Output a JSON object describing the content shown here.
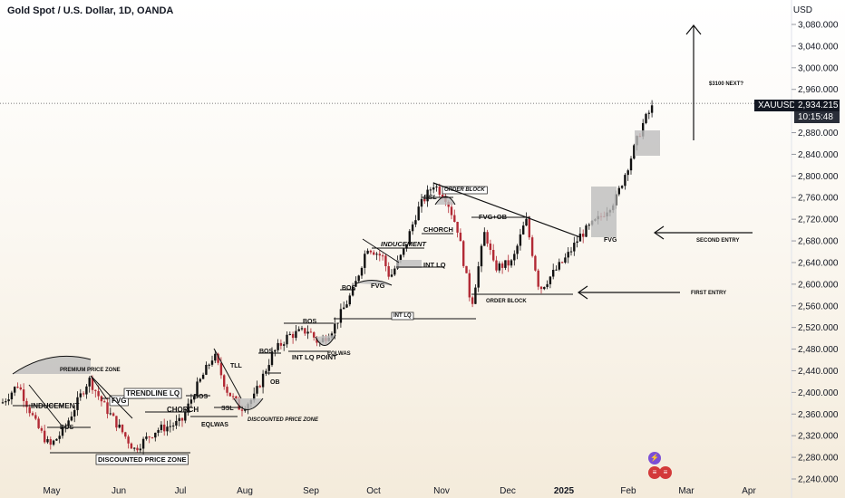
{
  "header": {
    "title": "Gold Spot / U.S. Dollar, 1D, OANDA",
    "currency": "USD"
  },
  "price_tag": {
    "symbol": "XAUUSD",
    "price": "2,934.215",
    "countdown": "10:15:48"
  },
  "colors": {
    "up": "#111111",
    "down": "#b22a35",
    "axis_text": "#131722",
    "annotation": "#111111"
  },
  "chart_data": {
    "type": "candlestick",
    "title": "Gold Spot / U.S. Dollar, 1D, OANDA",
    "y_axis": {
      "unit": "USD",
      "range": [
        2240,
        3100
      ],
      "ticks": [
        "3,080.000",
        "3,040.000",
        "3,000.000",
        "2,960.000",
        "2,920.000",
        "2,880.000",
        "2,840.000",
        "2,800.000",
        "2,760.000",
        "2,720.000",
        "2,680.000",
        "2,640.000",
        "2,600.000",
        "2,560.000",
        "2,520.000",
        "2,480.000",
        "2,440.000",
        "2,400.000",
        "2,360.000",
        "2,320.000",
        "2,280.000",
        "2,240.000"
      ]
    },
    "x_axis": {
      "ticks": [
        "May",
        "Jun",
        "Jul",
        "Aug",
        "Sep",
        "Oct",
        "Nov",
        "Dec",
        "2025",
        "Feb",
        "Mar",
        "Apr"
      ]
    },
    "approx_close_path": [
      {
        "x": "2024-04-15",
        "y": 2380
      },
      {
        "x": "2024-04-25",
        "y": 2330
      },
      {
        "x": "2024-05-02",
        "y": 2300
      },
      {
        "x": "2024-05-20",
        "y": 2425
      },
      {
        "x": "2024-06-07",
        "y": 2295
      },
      {
        "x": "2024-06-28",
        "y": 2330
      },
      {
        "x": "2024-07-16",
        "y": 2470
      },
      {
        "x": "2024-07-25",
        "y": 2365
      },
      {
        "x": "2024-08-20",
        "y": 2510
      },
      {
        "x": "2024-09-06",
        "y": 2500
      },
      {
        "x": "2024-09-26",
        "y": 2670
      },
      {
        "x": "2024-10-10",
        "y": 2610
      },
      {
        "x": "2024-10-30",
        "y": 2785
      },
      {
        "x": "2024-11-14",
        "y": 2540
      },
      {
        "x": "2024-11-25",
        "y": 2715
      },
      {
        "x": "2024-12-19",
        "y": 2590
      },
      {
        "x": "2025-01-10",
        "y": 2690
      },
      {
        "x": "2025-01-31",
        "y": 2800
      },
      {
        "x": "2025-02-11",
        "y": 2900
      },
      {
        "x": "2025-02-14",
        "y": 2934
      }
    ],
    "annotations": [
      "PREMIUM PRICE ZONE",
      "INDUCEMENT",
      "BOS",
      "FVG",
      "TRENDLINE LQ",
      "CHORCH",
      "DISCOUNTED PRICE ZONE",
      "BOS",
      "SSL",
      "EQLWAS",
      "DISCOUNTED PRICE ZONE",
      "TLL",
      "BOS",
      "OB",
      "BOS",
      "INT LQ POINT",
      "EQLWAS",
      "BOS",
      "FVG",
      "INDUCEMENT",
      "INT LQ",
      "INT LQ",
      "BSL",
      "CHORCH",
      "ORDER BLOCK",
      "FVG+OB",
      "ORDER BLOCK",
      "FVG",
      "SECOND ENTRY",
      "FIRST ENTRY",
      "$3100 NEXT?"
    ]
  }
}
